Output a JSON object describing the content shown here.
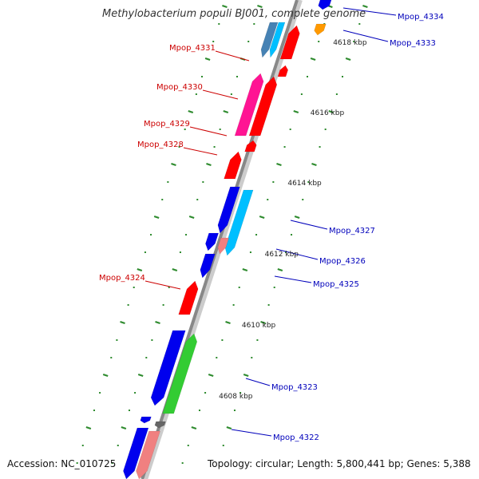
{
  "title": "Methylobacterium populi BJ001, complete genome",
  "accession": "Accession: NC_010725",
  "topology": "Topology: circular; Length: 5,800,441 bp; Genes: 5,388",
  "colors": {
    "backbone": "#888888",
    "tick": "#2e8b2e",
    "left_label": "#cc0000",
    "right_label": "#0000bb",
    "red": "#ff0000",
    "blue": "#0000ee",
    "magenta": "#ff1493",
    "cyan": "#00bfff",
    "steel": "#4682b4",
    "green": "#33cc33",
    "pink": "#f08080",
    "orange": "#ff9900",
    "gray": "#666666"
  },
  "scale_labels": [
    "4618 kbp",
    "4616 kbp",
    "4614 kbp",
    "4612 kbp",
    "4610 kbp",
    "4608 kbp"
  ],
  "left_genes": [
    "Mpop_4331",
    "Mpop_4330",
    "Mpop_4329",
    "Mpop_4328",
    "Mpop_4324"
  ],
  "right_genes": [
    "Mpop_4334",
    "Mpop_4333",
    "Mpop_4327",
    "Mpop_4326",
    "Mpop_4325",
    "Mpop_4323",
    "Mpop_4322"
  ]
}
